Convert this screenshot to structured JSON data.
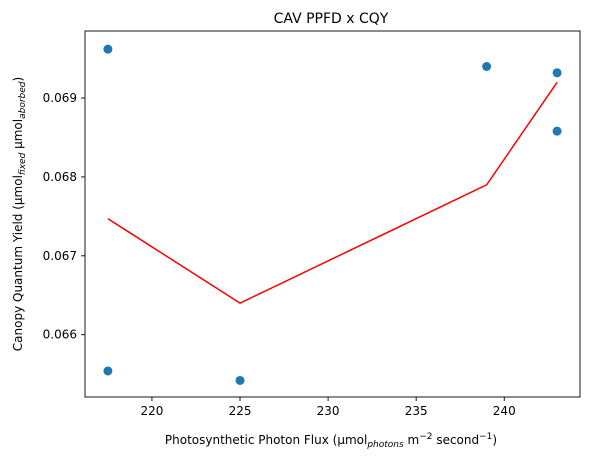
{
  "chart_data": {
    "type": "scatter",
    "title": "CAV PPFD x CQY",
    "xlabel": {
      "base": "Photosynthetic Photon Flux (µmol",
      "sub": "photons",
      "mid": " m",
      "sup1": "−2",
      "end": " second",
      "sup2": "−1",
      "close": ")"
    },
    "ylabel": {
      "base": "Canopy Quantum Yield (µmol",
      "sub1": "fixed",
      "mid": " µmol",
      "sub2": "aborbed",
      "close": ")"
    },
    "xlim": [
      216.2,
      244.3
    ],
    "ylim": [
      0.06521,
      0.06985
    ],
    "xticks": [
      220,
      225,
      230,
      235,
      240
    ],
    "yticks": [
      0.066,
      0.067,
      0.068,
      0.069
    ],
    "xtick_labels": [
      "220",
      "225",
      "230",
      "235",
      "240"
    ],
    "ytick_labels": [
      "0.066",
      "0.067",
      "0.068",
      "0.069"
    ],
    "grid": false,
    "series": [
      {
        "kind": "scatter",
        "color": "#1f77b4",
        "points": [
          {
            "x": 217.5,
            "y": 0.06962
          },
          {
            "x": 217.5,
            "y": 0.06554
          },
          {
            "x": 225.0,
            "y": 0.06542
          },
          {
            "x": 239.0,
            "y": 0.0694
          },
          {
            "x": 243.0,
            "y": 0.06932
          },
          {
            "x": 243.0,
            "y": 0.06858
          }
        ]
      },
      {
        "kind": "line",
        "color": "#ff0000",
        "points": [
          {
            "x": 217.5,
            "y": 0.06747
          },
          {
            "x": 225.0,
            "y": 0.0664
          },
          {
            "x": 239.0,
            "y": 0.0679
          },
          {
            "x": 243.0,
            "y": 0.0692
          }
        ]
      }
    ]
  }
}
